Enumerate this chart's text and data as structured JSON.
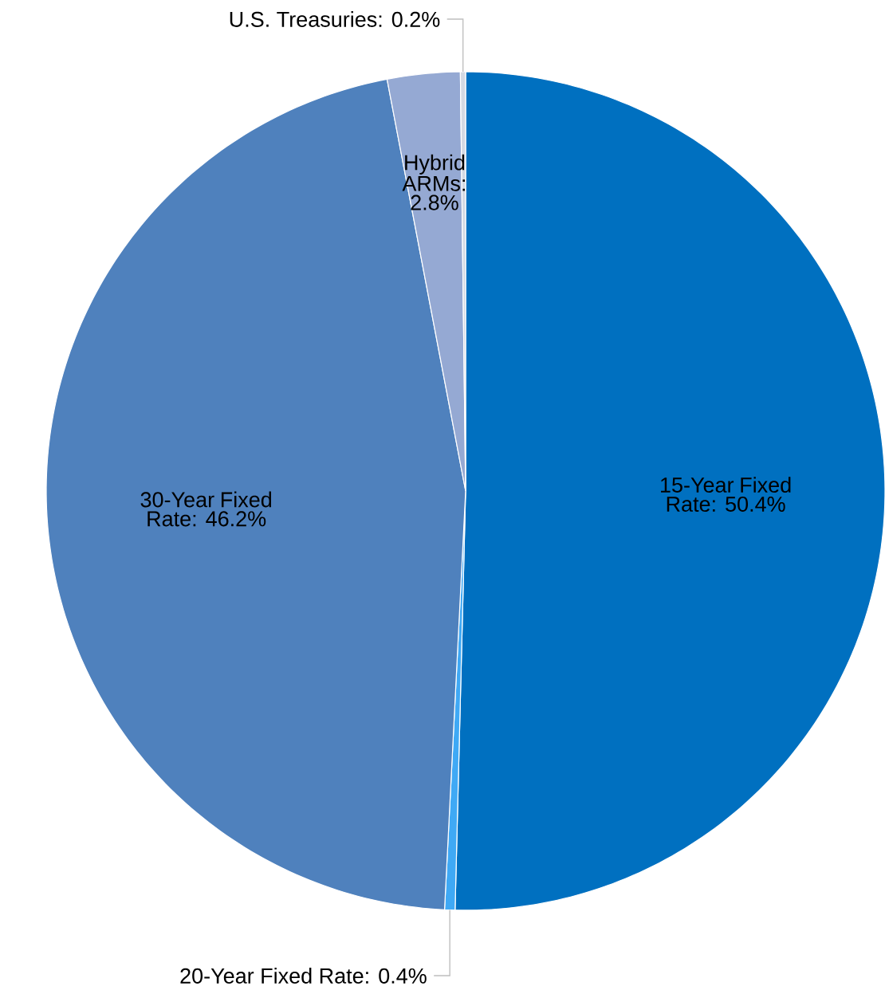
{
  "chart_data": {
    "type": "pie",
    "categories": [
      "15-Year Fixed Rate: 50.4%",
      "20-Year Fixed Rate: 0.4%",
      "30-Year Fixed Rate: 46.2%",
      "Hybrid ARMs: 2.8%",
      "U.S. Treasuries: 0.2%"
    ],
    "values": [
      50.4,
      0.4,
      46.2,
      2.8,
      0.2
    ],
    "colors": [
      "#0070c0",
      "#3fa9f5",
      "#4f81bd",
      "#95a9d3",
      "#d3d9e3"
    ],
    "legend": false
  }
}
